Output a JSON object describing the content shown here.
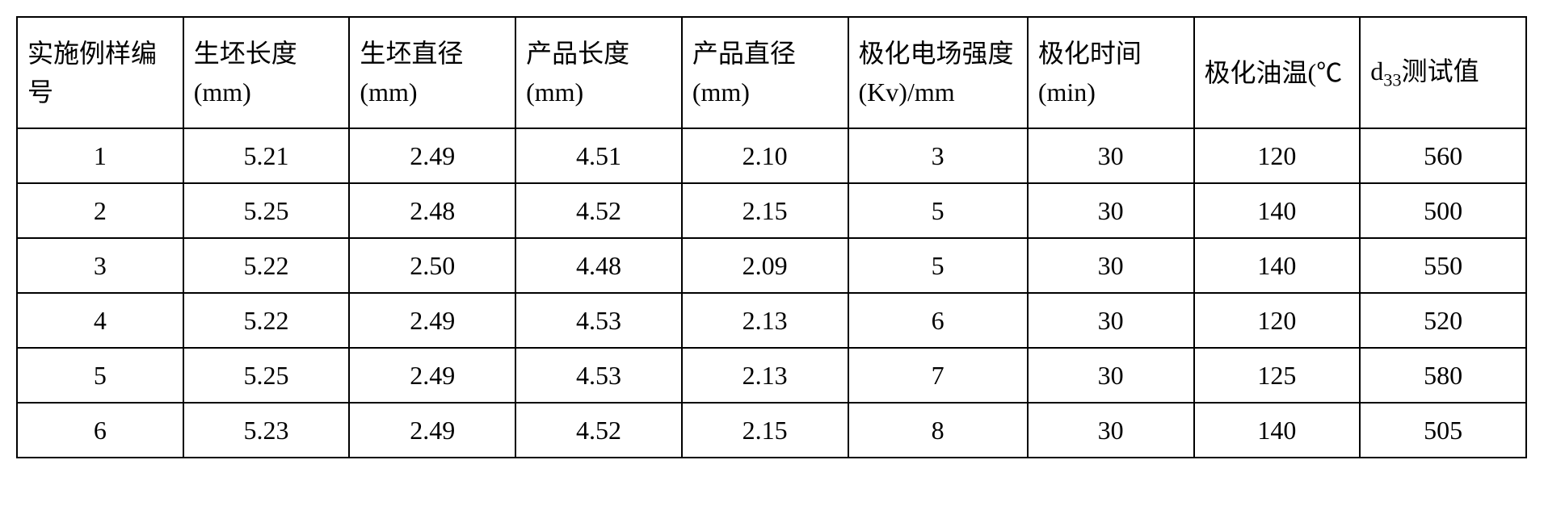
{
  "table": {
    "type": "table",
    "background_color": "#ffffff",
    "border_color": "#000000",
    "border_width": 2,
    "text_color": "#000000",
    "header_fontsize": 32,
    "cell_fontsize": 32,
    "font_family": "SimSun",
    "columns": [
      {
        "label": "实施例样编号",
        "width": 11,
        "align": "left"
      },
      {
        "label": "生坯长度(mm)",
        "width": 11,
        "align": "left"
      },
      {
        "label": "生坯直径(mm)",
        "width": 11,
        "align": "left"
      },
      {
        "label": "产品长度(mm)",
        "width": 11,
        "align": "left"
      },
      {
        "label": "产品直径(mm)",
        "width": 11,
        "align": "left"
      },
      {
        "label": "极化电场强度(Kv)/mm",
        "width": 12,
        "align": "left"
      },
      {
        "label": "极化时间(min)",
        "width": 11,
        "align": "left"
      },
      {
        "label": "极化油温(℃",
        "width": 11,
        "align": "left"
      },
      {
        "label_html": "d<sub>33</sub>测试值",
        "label": "d33测试值",
        "width": 11,
        "align": "left"
      }
    ],
    "rows": [
      [
        "1",
        "5.21",
        "2.49",
        "4.51",
        "2.10",
        "3",
        "30",
        "120",
        "560"
      ],
      [
        "2",
        "5.25",
        "2.48",
        "4.52",
        "2.15",
        "5",
        "30",
        "140",
        "500"
      ],
      [
        "3",
        "5.22",
        "2.50",
        "4.48",
        "2.09",
        "5",
        "30",
        "140",
        "550"
      ],
      [
        "4",
        "5.22",
        "2.49",
        "4.53",
        "2.13",
        "6",
        "30",
        "120",
        "520"
      ],
      [
        "5",
        "5.25",
        "2.49",
        "4.53",
        "2.13",
        "7",
        "30",
        "125",
        "580"
      ],
      [
        "6",
        "5.23",
        "2.49",
        "4.52",
        "2.15",
        "8",
        "30",
        "140",
        "505"
      ]
    ]
  }
}
